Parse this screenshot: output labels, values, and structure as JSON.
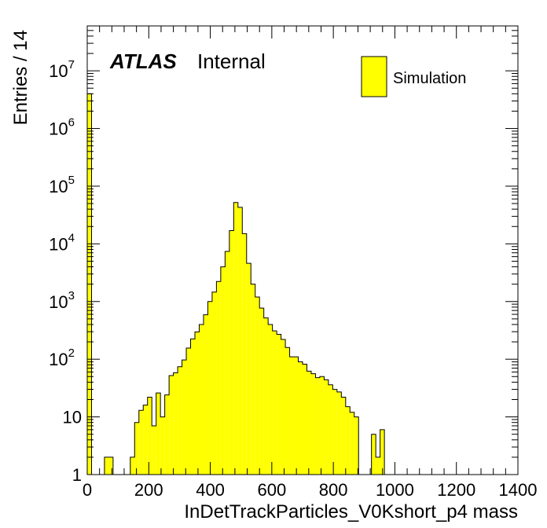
{
  "chart_data": {
    "type": "bar",
    "style": "histogram",
    "xlabel": "InDetTrackParticles_V0Kshort_p4 mass",
    "ylabel": "Entries / 14",
    "xlim": [
      0,
      1400
    ],
    "ylim": [
      1,
      60000000
    ],
    "yscale": "log",
    "bin_width": 14,
    "xticks": [
      0,
      200,
      400,
      600,
      800,
      1000,
      1200,
      1400
    ],
    "xtick_labels": [
      "0",
      "200",
      "400",
      "600",
      "800",
      "1000",
      "1200",
      "1400"
    ],
    "yticks": [
      {
        "value": 1,
        "base": "1",
        "exp": ""
      },
      {
        "value": 10,
        "base": "10",
        "exp": ""
      },
      {
        "value": 100,
        "base": "10",
        "exp": "2"
      },
      {
        "value": 1000,
        "base": "10",
        "exp": "3"
      },
      {
        "value": 10000,
        "base": "10",
        "exp": "4"
      },
      {
        "value": 100000,
        "base": "10",
        "exp": "5"
      },
      {
        "value": 1000000,
        "base": "10",
        "exp": "6"
      },
      {
        "value": 10000000,
        "base": "10",
        "exp": "7"
      }
    ],
    "bins": [
      {
        "x": 0,
        "y": 4000000
      },
      {
        "x": 14,
        "y": 1
      },
      {
        "x": 28,
        "y": 1
      },
      {
        "x": 42,
        "y": 1
      },
      {
        "x": 56,
        "y": 2
      },
      {
        "x": 70,
        "y": 2
      },
      {
        "x": 84,
        "y": 0
      },
      {
        "x": 98,
        "y": 1
      },
      {
        "x": 112,
        "y": 1
      },
      {
        "x": 126,
        "y": 1
      },
      {
        "x": 140,
        "y": 2
      },
      {
        "x": 154,
        "y": 8
      },
      {
        "x": 168,
        "y": 13
      },
      {
        "x": 182,
        "y": 16
      },
      {
        "x": 196,
        "y": 22
      },
      {
        "x": 210,
        "y": 7
      },
      {
        "x": 224,
        "y": 26
      },
      {
        "x": 238,
        "y": 10
      },
      {
        "x": 252,
        "y": 24
      },
      {
        "x": 266,
        "y": 52
      },
      {
        "x": 280,
        "y": 58
      },
      {
        "x": 294,
        "y": 74
      },
      {
        "x": 308,
        "y": 97
      },
      {
        "x": 322,
        "y": 156
      },
      {
        "x": 336,
        "y": 225
      },
      {
        "x": 350,
        "y": 297
      },
      {
        "x": 364,
        "y": 400
      },
      {
        "x": 378,
        "y": 590
      },
      {
        "x": 392,
        "y": 1000
      },
      {
        "x": 406,
        "y": 1460
      },
      {
        "x": 420,
        "y": 2230
      },
      {
        "x": 434,
        "y": 4000
      },
      {
        "x": 448,
        "y": 7400
      },
      {
        "x": 462,
        "y": 17000
      },
      {
        "x": 476,
        "y": 52000
      },
      {
        "x": 490,
        "y": 43000
      },
      {
        "x": 504,
        "y": 15000
      },
      {
        "x": 518,
        "y": 4600
      },
      {
        "x": 532,
        "y": 2000
      },
      {
        "x": 546,
        "y": 1200
      },
      {
        "x": 560,
        "y": 770
      },
      {
        "x": 574,
        "y": 520
      },
      {
        "x": 588,
        "y": 400
      },
      {
        "x": 602,
        "y": 310
      },
      {
        "x": 616,
        "y": 270
      },
      {
        "x": 630,
        "y": 220
      },
      {
        "x": 644,
        "y": 160
      },
      {
        "x": 658,
        "y": 110
      },
      {
        "x": 672,
        "y": 110
      },
      {
        "x": 686,
        "y": 90
      },
      {
        "x": 700,
        "y": 82
      },
      {
        "x": 714,
        "y": 62
      },
      {
        "x": 728,
        "y": 56
      },
      {
        "x": 742,
        "y": 48
      },
      {
        "x": 756,
        "y": 50
      },
      {
        "x": 770,
        "y": 44
      },
      {
        "x": 784,
        "y": 36
      },
      {
        "x": 798,
        "y": 30
      },
      {
        "x": 812,
        "y": 27
      },
      {
        "x": 826,
        "y": 22
      },
      {
        "x": 840,
        "y": 15
      },
      {
        "x": 854,
        "y": 12
      },
      {
        "x": 868,
        "y": 10
      },
      {
        "x": 882,
        "y": 0
      },
      {
        "x": 896,
        "y": 0
      },
      {
        "x": 910,
        "y": 0
      },
      {
        "x": 924,
        "y": 5
      },
      {
        "x": 938,
        "y": 2
      },
      {
        "x": 952,
        "y": 6
      },
      {
        "x": 966,
        "y": 0
      }
    ],
    "legend": {
      "entries": [
        "Simulation"
      ],
      "placement": "top-right"
    },
    "annotation": {
      "experiment": "ATLAS",
      "label": "Internal"
    },
    "colors": {
      "fill": "#ffff00",
      "edge": "#000000",
      "frame": "#000000"
    }
  }
}
